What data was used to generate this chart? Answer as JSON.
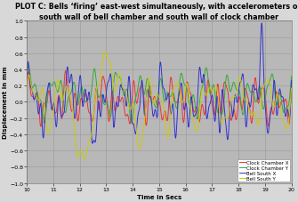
{
  "title_line1": "PLOT C: Bells ‘firing’ east-west simultaneously, with accelerometers on",
  "title_line2": "south wall of bell chamber and south wall of clock chamber",
  "xlabel": "Time in Secs",
  "ylabel": "Displacement in mm",
  "xlim": [
    10,
    20
  ],
  "ylim": [
    -1,
    1
  ],
  "yticks": [
    -1,
    -0.8,
    -0.6,
    -0.4,
    -0.2,
    0,
    0.2,
    0.4,
    0.6,
    0.8,
    1
  ],
  "xticks": [
    10,
    11,
    12,
    13,
    14,
    15,
    16,
    17,
    18,
    19,
    20
  ],
  "plot_bg_color": "#b8b8b8",
  "outer_bg_color": "#d8d8d8",
  "grid_color": "#999999",
  "legend_labels": [
    "Clock Chamber X",
    "Clock Chamber Y",
    "Bell South X",
    "Bell South Y"
  ],
  "legend_colors": [
    "#ee3333",
    "#33aa33",
    "#3333cc",
    "#cccc00"
  ],
  "line_width": 0.7,
  "title_fontsize": 5.8,
  "axis_label_fontsize": 5.0,
  "tick_fontsize": 4.5,
  "legend_fontsize": 4.0
}
